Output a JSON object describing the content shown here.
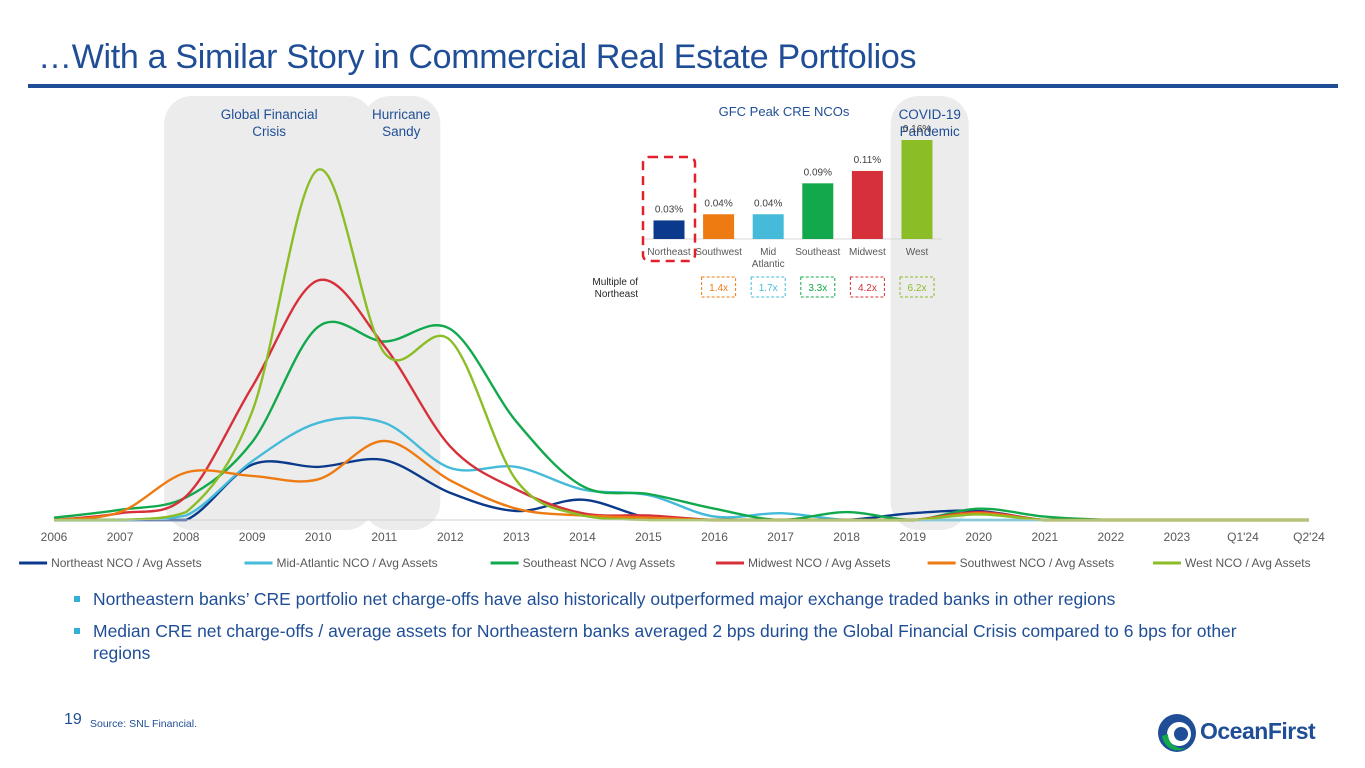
{
  "page": {
    "title": "…With a Similar Story in Commercial Real Estate Portfolios",
    "page_number": "19",
    "source": "Source: SNL Financial.",
    "logo_text": "OceanFirst",
    "bullets": [
      "Northeastern banks’ CRE portfolio net charge-offs have also historically outperformed major exchange traded banks in other regions",
      "Median CRE net charge-offs / average assets for Northeastern banks averaged 2 bps during the Global Financial Crisis compared to 6 bps for other regions"
    ]
  },
  "colors": {
    "title_blue": "#1f4e96",
    "northeast": "#0b3a8c",
    "mid_atlantic": "#45bbd9",
    "southeast": "#12a94d",
    "midwest": "#d6313a",
    "southwest": "#ee7a12",
    "west": "#8bbd26"
  },
  "chart_data": [
    {
      "type": "line",
      "x": [
        "2006",
        "2007",
        "2008",
        "2009",
        "2010",
        "2011",
        "2012",
        "2013",
        "2014",
        "2015",
        "2016",
        "2017",
        "2018",
        "2019",
        "2020",
        "2021",
        "2022",
        "2023",
        "Q1'24",
        "Q2'24"
      ],
      "series": [
        {
          "name": "Northeast NCO / Avg Assets",
          "color": "#0b3a8c",
          "values": [
            0,
            0,
            0,
            0.49,
            0.47,
            0.53,
            0.24,
            0.08,
            0.18,
            0.02,
            0,
            0,
            0,
            0.06,
            0.08,
            0,
            0,
            0,
            0,
            0
          ]
        },
        {
          "name": "Mid-Atlantic NCO / Avg Assets",
          "color": "#45bbd9",
          "values": [
            0,
            0,
            0.04,
            0.52,
            0.86,
            0.86,
            0.46,
            0.47,
            0.27,
            0.22,
            0.03,
            0.06,
            0,
            0,
            0,
            0,
            0,
            0,
            0,
            0
          ]
        },
        {
          "name": "Southeast NCO / Avg Assets",
          "color": "#12a94d",
          "values": [
            0.02,
            0.09,
            0.2,
            0.69,
            1.71,
            1.58,
            1.69,
            0.87,
            0.3,
            0.23,
            0.1,
            0,
            0.07,
            0,
            0.1,
            0.03,
            0,
            0,
            0,
            0
          ]
        },
        {
          "name": "Midwest NCO / Avg Assets",
          "color": "#d6313a",
          "values": [
            0,
            0.06,
            0.21,
            1.18,
            2.12,
            1.54,
            0.65,
            0.27,
            0.06,
            0.04,
            0,
            0,
            0,
            0,
            0.07,
            0,
            0,
            0,
            0,
            0
          ]
        },
        {
          "name": "Southwest NCO / Avg Assets",
          "color": "#ee7a12",
          "values": [
            0,
            0.07,
            0.42,
            0.39,
            0.36,
            0.7,
            0.35,
            0.1,
            0.04,
            0.02,
            0,
            0,
            0,
            0,
            0.06,
            0,
            0,
            0,
            0,
            0
          ]
        },
        {
          "name": "West NCO / Avg Assets",
          "color": "#8bbd26",
          "values": [
            0,
            0,
            0.07,
            0.96,
            3.1,
            1.48,
            1.59,
            0.35,
            0.04,
            0,
            0,
            0,
            0,
            0,
            0.05,
            0,
            0,
            0,
            0,
            0
          ]
        }
      ],
      "legend": "bottom",
      "grid": false,
      "shaded_periods": [
        {
          "label": "Global Financial Crisis",
          "from": "2008",
          "to": "2011"
        },
        {
          "label": "Hurricane Sandy",
          "from": "2011",
          "to": "2012"
        },
        {
          "label": "COVID-19 Pandemic",
          "from": "2019",
          "to": "2020"
        }
      ]
    },
    {
      "type": "bar",
      "title": "GFC Peak CRE NCOs",
      "categories": [
        "Northeast",
        "Southwest",
        "Mid Atlantic",
        "Southeast",
        "Midwest",
        "West"
      ],
      "values": [
        0.03,
        0.04,
        0.04,
        0.09,
        0.11,
        0.16
      ],
      "data_labels": [
        "0.03%",
        "0.04%",
        "0.04%",
        "0.09%",
        "0.11%",
        "0.16%"
      ],
      "colors": [
        "#0b3a8c",
        "#ee7a12",
        "#45bbd9",
        "#12a94d",
        "#d6313a",
        "#8bbd26"
      ],
      "highlight": "Northeast",
      "multiple_label": "Multiple of Northeast",
      "multiples": [
        "",
        "1.4x",
        "1.7x",
        "3.3x",
        "4.2x",
        "6.2x"
      ]
    }
  ]
}
